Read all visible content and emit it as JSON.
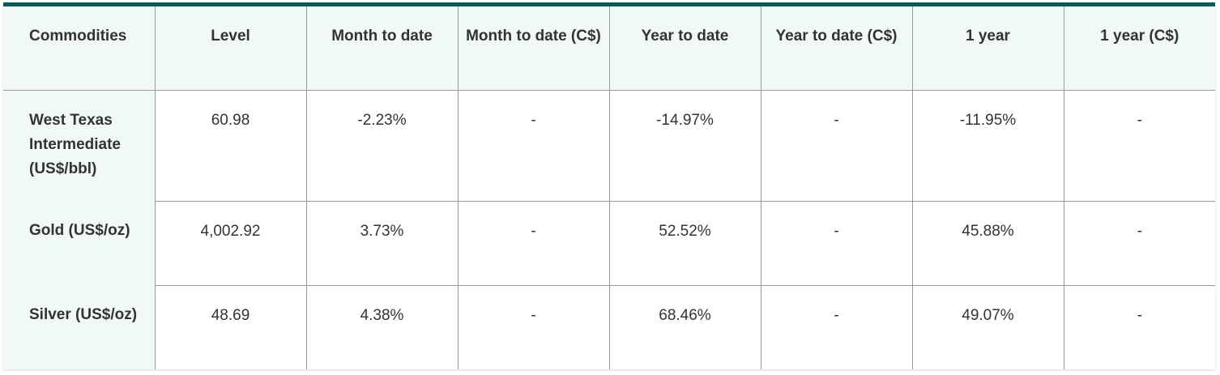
{
  "headers": [
    "Commodities",
    "Level",
    "Month to date",
    "Month to date (C$)",
    "Year to date",
    "Year to date (C$)",
    "1 year",
    "1 year (C$)"
  ],
  "rows": [
    {
      "name": "West Texas Intermediate (US$/bbl)",
      "cells": [
        "60.98",
        "-2.23%",
        "-",
        "-14.97%",
        "-",
        "-11.95%",
        "-"
      ]
    },
    {
      "name": "Gold (US$/oz)",
      "cells": [
        "4,002.92",
        "3.73%",
        "-",
        "52.52%",
        "-",
        "45.88%",
        "-"
      ]
    },
    {
      "name": "Silver (US$/oz)",
      "cells": [
        "48.69",
        "4.38%",
        "-",
        "68.46%",
        "-",
        "49.07%",
        "-"
      ]
    }
  ],
  "colors": {
    "accent": "#0b5a5a",
    "header_bg": "#f0f8f8"
  }
}
